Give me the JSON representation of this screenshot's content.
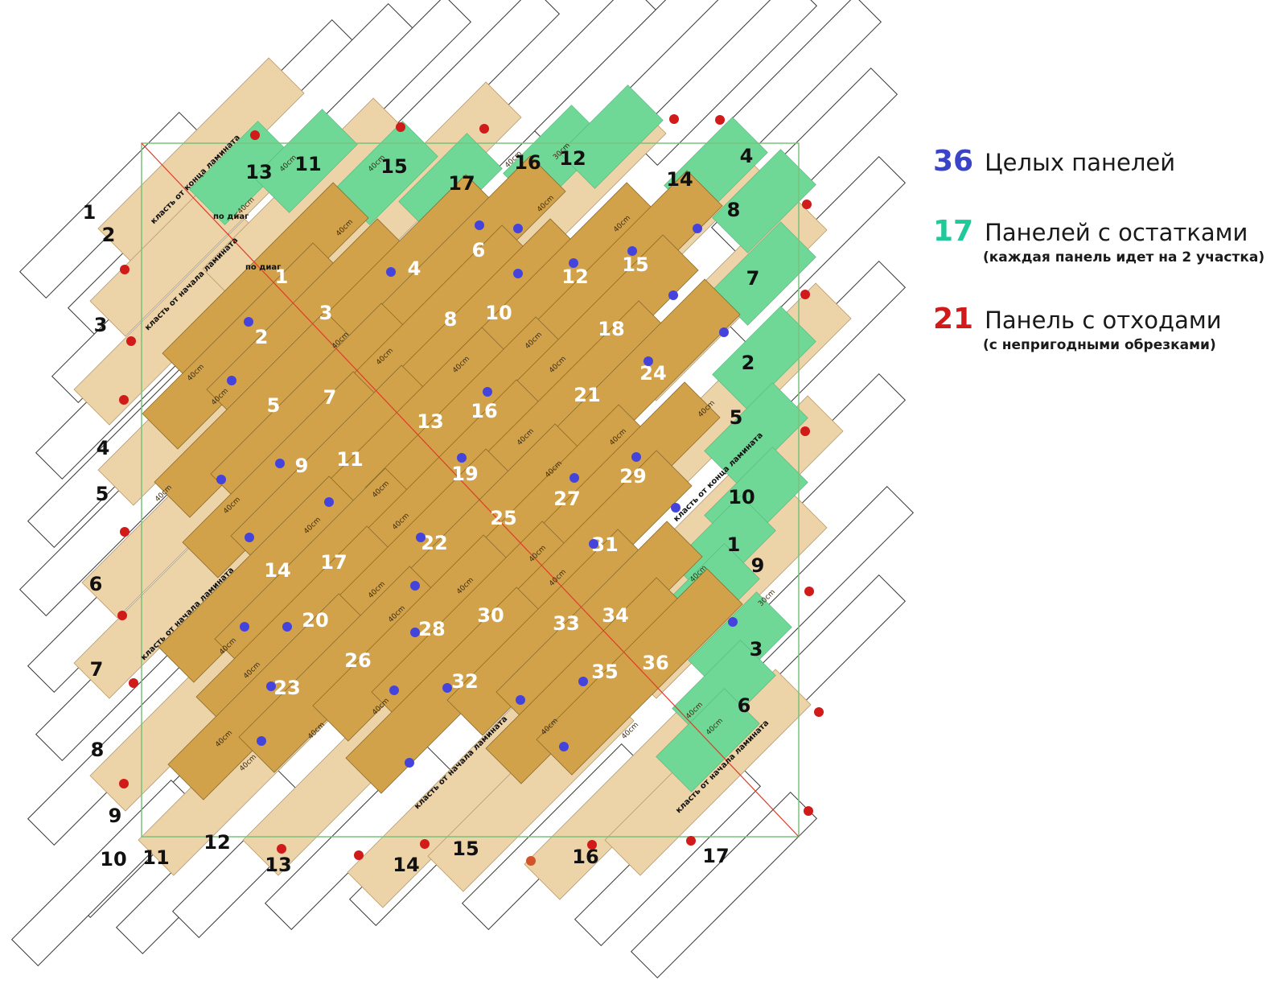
{
  "legend": {
    "whole": {
      "count": "36",
      "label": "Целых панелей",
      "color": "#3a44c8"
    },
    "remnant": {
      "count": "17",
      "label": "Панелей с остатками",
      "note": "(каждая панель идет на 2 участка)",
      "color": "#1fc99a"
    },
    "waste": {
      "count": "21",
      "label": "Панель с отходами",
      "note": "(с непригодными обрезками)",
      "color": "#d11a1a"
    }
  },
  "colors": {
    "whole_panel": "#d2a24a",
    "waste_panel": "#ecd3a8",
    "remnant_area": "#6fd897",
    "whole_dot": "#4444dd",
    "waste_dot": "#d11a1a",
    "diagonal": "#e03a2a",
    "room_border": "#7ac27a"
  },
  "texts": {
    "lay_from_end": "класть от конца ламината",
    "lay_from_start": "класть от начала ламината",
    "by_diag": "по диаг",
    "cm40": "40cm",
    "cm30": "30cm",
    "lt40": "<40cm"
  },
  "whole_panels": [
    "1",
    "2",
    "3",
    "4",
    "5",
    "6",
    "7",
    "8",
    "9",
    "10",
    "11",
    "12",
    "13",
    "14",
    "15",
    "16",
    "17",
    "18",
    "19",
    "20",
    "21",
    "22",
    "23",
    "24",
    "25",
    "26",
    "27",
    "28",
    "29",
    "30",
    "31",
    "32",
    "33",
    "34",
    "35",
    "36"
  ],
  "remnant_numbers": [
    "1",
    "2",
    "3",
    "4",
    "5",
    "6",
    "7",
    "8",
    "9",
    "10",
    "11",
    "12",
    "13",
    "14",
    "15",
    "16",
    "17"
  ],
  "row_numbers": [
    "1",
    "2",
    "3",
    "4",
    "5",
    "6",
    "7",
    "8",
    "9",
    "10",
    "11",
    "12",
    "13",
    "14",
    "15",
    "16",
    "17"
  ]
}
